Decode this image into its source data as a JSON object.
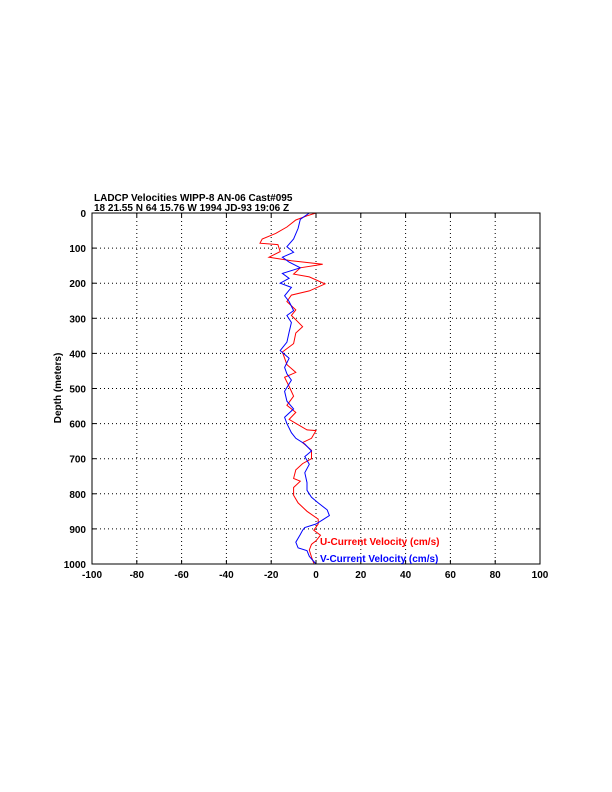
{
  "chart_data": {
    "type": "line",
    "title": "LADCP Velocities WIPP-8 AN-06 Cast#095",
    "subtitle": "18 21.55 N  64 15.76 W  1994 JD-93 19:06 Z",
    "xlabel": "",
    "ylabel": "Depth (meters)",
    "xlim": [
      -100,
      100
    ],
    "ylim": [
      0,
      1000
    ],
    "y_reversed": true,
    "xticks": [
      -100,
      -80,
      -60,
      -40,
      -20,
      0,
      20,
      40,
      60,
      80,
      100
    ],
    "yticks": [
      0,
      100,
      200,
      300,
      400,
      500,
      600,
      700,
      800,
      900,
      1000
    ],
    "grid": true,
    "legend_position": "bottom-right",
    "series": [
      {
        "name": "U-Current Velocity (cm/s)",
        "color": "#ff0000",
        "points": [
          [
            0,
            0
          ],
          [
            -4,
            8
          ],
          [
            -9,
            20
          ],
          [
            -13,
            40
          ],
          [
            -18,
            58
          ],
          [
            -24,
            74
          ],
          [
            -25,
            86
          ],
          [
            -17,
            90
          ],
          [
            -16,
            110
          ],
          [
            -21,
            126
          ],
          [
            -11,
            136
          ],
          [
            3,
            146
          ],
          [
            -7,
            156
          ],
          [
            -10,
            174
          ],
          [
            -3,
            182
          ],
          [
            4,
            202
          ],
          [
            -3,
            222
          ],
          [
            -11,
            234
          ],
          [
            -13,
            252
          ],
          [
            -9,
            276
          ],
          [
            -11,
            292
          ],
          [
            -9,
            304
          ],
          [
            -6,
            324
          ],
          [
            -9,
            342
          ],
          [
            -10,
            372
          ],
          [
            -15,
            396
          ],
          [
            -13,
            432
          ],
          [
            -9,
            454
          ],
          [
            -14,
            468
          ],
          [
            -12,
            494
          ],
          [
            -10,
            522
          ],
          [
            -13,
            548
          ],
          [
            -9,
            568
          ],
          [
            -12,
            588
          ],
          [
            -4,
            618
          ],
          [
            0,
            620
          ],
          [
            -2,
            642
          ],
          [
            -6,
            654
          ],
          [
            -2,
            676
          ],
          [
            -2,
            700
          ],
          [
            -6,
            714
          ],
          [
            -9,
            732
          ],
          [
            -10,
            756
          ],
          [
            -7,
            764
          ],
          [
            -10,
            782
          ],
          [
            -10,
            804
          ],
          [
            -8,
            826
          ],
          [
            -4,
            850
          ],
          [
            1,
            872
          ],
          [
            1,
            886
          ],
          [
            -1,
            904
          ],
          [
            2,
            918
          ],
          [
            0,
            934
          ],
          [
            -2,
            944
          ],
          [
            -3,
            960
          ],
          [
            -2,
            980
          ],
          [
            -1,
            998
          ]
        ]
      },
      {
        "name": "V-Current Velocity (cm/s)",
        "color": "#0000ff",
        "points": [
          [
            -3,
            0
          ],
          [
            -7,
            18
          ],
          [
            -8,
            44
          ],
          [
            -10,
            74
          ],
          [
            -13,
            96
          ],
          [
            -10,
            112
          ],
          [
            -15,
            126
          ],
          [
            -12,
            140
          ],
          [
            -7,
            156
          ],
          [
            -15,
            172
          ],
          [
            -12,
            186
          ],
          [
            -16,
            200
          ],
          [
            -11,
            212
          ],
          [
            -14,
            236
          ],
          [
            -12,
            252
          ],
          [
            -10,
            278
          ],
          [
            -13,
            292
          ],
          [
            -11,
            312
          ],
          [
            -12,
            340
          ],
          [
            -13,
            368
          ],
          [
            -16,
            392
          ],
          [
            -12,
            414
          ],
          [
            -14,
            440
          ],
          [
            -13,
            458
          ],
          [
            -11,
            476
          ],
          [
            -14,
            508
          ],
          [
            -13,
            536
          ],
          [
            -10,
            558
          ],
          [
            -14,
            582
          ],
          [
            -13,
            600
          ],
          [
            -11,
            626
          ],
          [
            -9,
            642
          ],
          [
            -5,
            658
          ],
          [
            -2,
            678
          ],
          [
            -5,
            694
          ],
          [
            -3,
            716
          ],
          [
            -5,
            740
          ],
          [
            -4,
            768
          ],
          [
            -4,
            790
          ],
          [
            -2,
            810
          ],
          [
            1,
            826
          ],
          [
            5,
            846
          ],
          [
            6,
            862
          ],
          [
            3,
            874
          ],
          [
            0,
            886
          ],
          [
            -5,
            896
          ],
          [
            -6,
            904
          ],
          [
            -7,
            916
          ],
          [
            -9,
            938
          ],
          [
            -8,
            954
          ],
          [
            -4,
            962
          ],
          [
            -3,
            978
          ],
          [
            0,
            1000
          ]
        ]
      }
    ]
  }
}
